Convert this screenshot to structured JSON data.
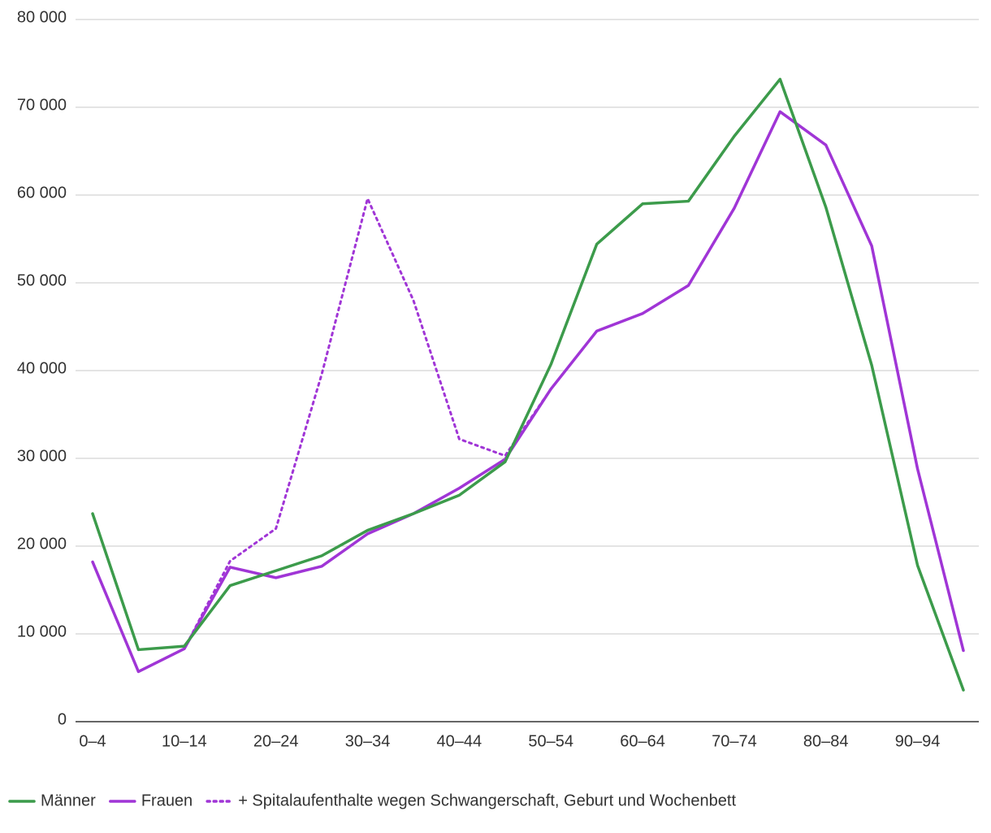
{
  "chart_data": {
    "type": "line",
    "categories": [
      "0–4",
      null,
      "10–14",
      null,
      "20–24",
      null,
      "30–34",
      null,
      "40–44",
      null,
      "50–54",
      null,
      "60–64",
      null,
      "70–74",
      null,
      "80–84",
      null,
      "90–94",
      null
    ],
    "series": [
      {
        "name": "Männer",
        "color": "#3c9b4b",
        "style": "solid",
        "values": [
          23700,
          8200,
          8600,
          15500,
          17200,
          18900,
          21800,
          23700,
          25800,
          29600,
          40700,
          54400,
          59000,
          59300,
          66700,
          73200,
          58600,
          40600,
          17800,
          3600
        ]
      },
      {
        "name": "Frauen",
        "color": "#a035d6",
        "style": "solid",
        "values": [
          18200,
          5700,
          8300,
          17600,
          16400,
          17700,
          21400,
          23700,
          26600,
          29900,
          37900,
          44500,
          46500,
          49700,
          58500,
          69500,
          65700,
          54200,
          28800,
          8100
        ]
      },
      {
        "name": "+ Spitalaufenthalte wegen Schwangerschaft, Geburt und Wochenbett",
        "color": "#a035d6",
        "style": "dotted",
        "values": [
          18200,
          5700,
          8300,
          18300,
          22000,
          39600,
          59600,
          48000,
          32200,
          30300,
          37900,
          44500,
          46500,
          49700,
          58500,
          69500,
          65700,
          54200,
          28800,
          8100
        ]
      }
    ],
    "ylim": [
      0,
      80000
    ],
    "yticks": [
      0,
      {
        "value": 10000,
        "label": "10 000"
      },
      {
        "value": 20000,
        "label": "20 000"
      },
      {
        "value": 30000,
        "label": "30 000"
      },
      {
        "value": 40000,
        "label": "40 000"
      },
      {
        "value": 50000,
        "label": "50 000"
      },
      {
        "value": 60000,
        "label": "60 000"
      },
      {
        "value": 70000,
        "label": "70 000"
      },
      {
        "value": 80000,
        "label": "80 000"
      }
    ],
    "grid": true,
    "legend": "bottom"
  }
}
